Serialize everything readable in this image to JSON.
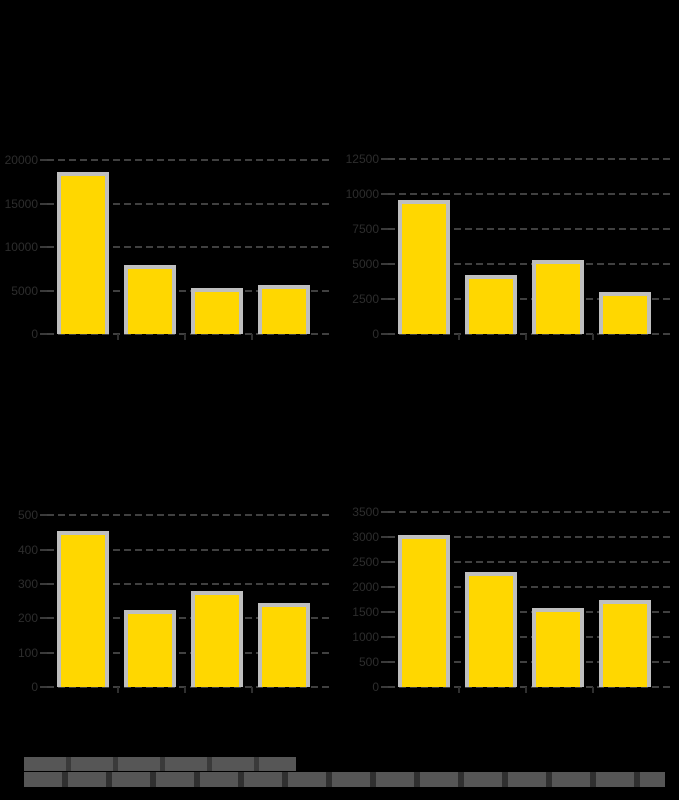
{
  "page": {
    "background_color": "#000000",
    "legibility_note": "Figure rendered on black background; titles and category labels are black (not visible). Y tick labels are faint dark gray; numeric values below are estimated from bar heights and gridline spacing."
  },
  "figure": {
    "layout": "2x2 grid of bar charts",
    "footer": {
      "visible": true,
      "text_legible": false,
      "color": "#565656",
      "lines": 2
    }
  },
  "style": {
    "bar_color": "#FFD700",
    "bar_edge_color": "#BFBFBF",
    "gridline_color": "#404040",
    "gridline_style": "dashed",
    "tick_label_color": "#2D2D2D",
    "tick_mark_color": "#3A3A3A"
  },
  "chart_data": [
    {
      "type": "bar",
      "position": "top-left",
      "title": "",
      "xlabel": "",
      "ylabel": "",
      "categories": [
        "",
        "",
        "",
        ""
      ],
      "values": [
        18600,
        7950,
        5300,
        5650
      ],
      "yticks": [
        0,
        5000,
        10000,
        15000,
        20000
      ],
      "ylim": [
        0,
        21150
      ],
      "grid": "horizontal dashed",
      "legend": "none"
    },
    {
      "type": "bar",
      "position": "top-right",
      "title": "",
      "xlabel": "",
      "ylabel": "",
      "categories": [
        "",
        "",
        "",
        ""
      ],
      "values": [
        9600,
        4250,
        5300,
        3000
      ],
      "yticks": [
        0,
        2500,
        5000,
        7500,
        10000,
        12500
      ],
      "ylim": [
        0,
        13150
      ],
      "grid": "horizontal dashed",
      "legend": "none"
    },
    {
      "type": "bar",
      "position": "bottom-left",
      "title": "",
      "xlabel": "",
      "ylabel": "",
      "categories": [
        "",
        "",
        "",
        ""
      ],
      "values": [
        455,
        225,
        280,
        245
      ],
      "yticks": [
        0,
        100,
        200,
        300,
        400,
        500
      ],
      "ylim": [
        0,
        544
      ],
      "grid": "horizontal dashed",
      "legend": "none"
    },
    {
      "type": "bar",
      "position": "bottom-right",
      "title": "",
      "xlabel": "",
      "ylabel": "",
      "categories": [
        "",
        "",
        "",
        ""
      ],
      "values": [
        3040,
        2300,
        1580,
        1740
      ],
      "yticks": [
        0,
        500,
        1000,
        1500,
        2000,
        2500,
        3000,
        3500
      ],
      "ylim": [
        0,
        3740
      ],
      "grid": "horizontal dashed",
      "legend": "none"
    }
  ]
}
